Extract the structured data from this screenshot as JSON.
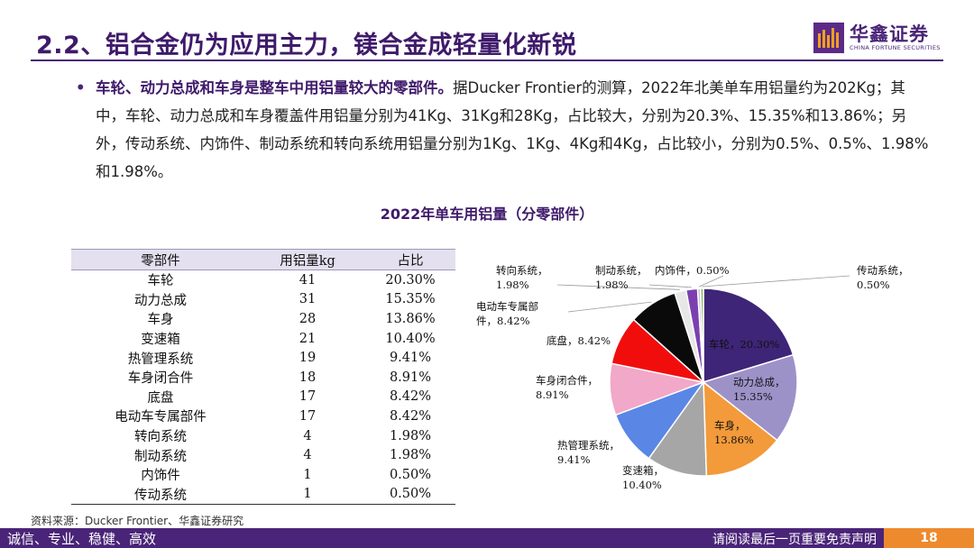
{
  "slide": {
    "title": "2.2、铝合金仍为应用主力，镁合金成轻量化新锐",
    "logo_cn": "华鑫证券",
    "logo_en": "CHINA FORTUNE SECURITIES",
    "bullet_bold": "车轮、动力总成和车身是整车中用铝量较大的零部件。",
    "bullet_rest": "据Ducker Frontier的测算，2022年北美单车用铝量约为202Kg；其中，车轮、动力总成和车身覆盖件用铝量分别为41Kg、31Kg和28Kg，占比较大，分别为20.3%、15.35%和13.86%；另外，传动系统、内饰件、制动系统和转向系统用铝量分别为1Kg、1Kg、4Kg和4Kg，占比较小，分别为0.5%、0.5%、1.98%和1.98%。",
    "source": "资料来源：Ducker Frontier、华鑫证券研究",
    "footer_left": "诚信、专业、稳健、高效",
    "footer_right": "请阅读最后一页重要免责声明",
    "page_number": "18"
  },
  "table": {
    "headers": [
      "零部件",
      "用铝量kg",
      "占比"
    ],
    "rows": [
      [
        "车轮",
        "41",
        "20.30%"
      ],
      [
        "动力总成",
        "31",
        "15.35%"
      ],
      [
        "车身",
        "28",
        "13.86%"
      ],
      [
        "变速箱",
        "21",
        "10.40%"
      ],
      [
        "热管理系统",
        "19",
        "9.41%"
      ],
      [
        "车身闭合件",
        "18",
        "8.91%"
      ],
      [
        "底盘",
        "17",
        "8.42%"
      ],
      [
        "电动车专属部件",
        "17",
        "8.42%"
      ],
      [
        "转向系统",
        "4",
        "1.98%"
      ],
      [
        "制动系统",
        "4",
        "1.98%"
      ],
      [
        "内饰件",
        "1",
        "0.50%"
      ],
      [
        "传动系统",
        "1",
        "0.50%"
      ]
    ]
  },
  "chart_data": {
    "type": "pie",
    "title": "2022年单车用铝量（分零部件）",
    "categories": [
      "车轮",
      "动力总成",
      "车身",
      "变速箱",
      "热管理系统",
      "车身闭合件",
      "底盘",
      "电动车专属部件",
      "转向系统",
      "制动系统",
      "内饰件",
      "传动系统"
    ],
    "values": [
      20.3,
      15.35,
      13.86,
      10.4,
      9.41,
      8.91,
      8.42,
      8.42,
      1.98,
      1.98,
      0.5,
      0.5
    ],
    "labels": [
      [
        "车轮，20.30%"
      ],
      [
        "动力总成，",
        "15.35%"
      ],
      [
        "车身，",
        "13.86%"
      ],
      [
        "变速箱，",
        "10.40%"
      ],
      [
        "热管理系统，",
        "9.41%"
      ],
      [
        "车身闭合件，",
        "8.91%"
      ],
      [
        "底盘，8.42%"
      ],
      [
        "电动车专属部",
        "件，8.42%"
      ],
      [
        "转向系统，",
        "1.98%"
      ],
      [
        "制动系统，",
        "1.98%"
      ],
      [
        "内饰件，0.50%"
      ],
      [
        "传动系统，",
        "0.50%"
      ]
    ],
    "colors": [
      "#3e2577",
      "#9d92c8",
      "#f39a3a",
      "#a6a6a6",
      "#5a86e6",
      "#f2a8c8",
      "#f20d0d",
      "#0a0a0a",
      "#e7e7e7",
      "#7c3fb0",
      "#c8c0e2",
      "#8bbb5a"
    ]
  }
}
